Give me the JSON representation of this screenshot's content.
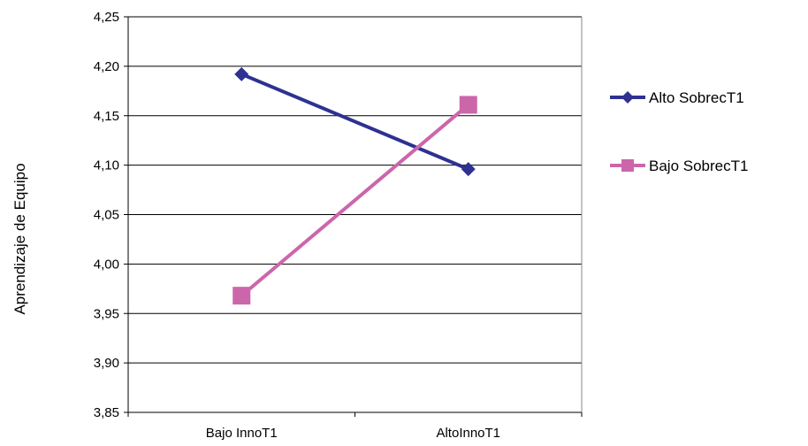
{
  "chart_data": {
    "type": "line",
    "title": "",
    "xlabel": "",
    "ylabel": "Aprendizaje de Equipo",
    "categories": [
      "Bajo InnoT1",
      "AltoInnoT1"
    ],
    "series": [
      {
        "name": "Alto SobrecT1",
        "values": [
          4.192,
          4.096
        ],
        "color": "#2E3192",
        "marker": "diamond"
      },
      {
        "name": "Bajo SobrecT1",
        "values": [
          3.968,
          4.161
        ],
        "color": "#CC66AA",
        "marker": "square"
      }
    ],
    "ylim": [
      3.85,
      4.25
    ],
    "yticks": [
      "3,85",
      "3,90",
      "3,95",
      "4,00",
      "4,05",
      "4,10",
      "4,15",
      "4,20",
      "4,25"
    ],
    "grid": true,
    "legend": "right"
  }
}
